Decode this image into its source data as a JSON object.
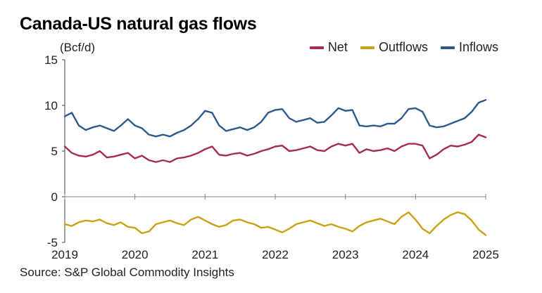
{
  "chart_data": {
    "type": "line",
    "title": "Canada-US natural gas flows",
    "ylabel": "(Bcf/d)",
    "source": "Source: S&P Global Commodity Insights",
    "ylim": [
      -5,
      15
    ],
    "yticks": [
      15,
      10,
      5,
      0,
      -5
    ],
    "xlim": [
      2019,
      2025
    ],
    "xticks": [
      "2019",
      "2020",
      "2021",
      "2022",
      "2023",
      "2024",
      "2025"
    ],
    "grid": false,
    "legend_position": "top-right",
    "series": [
      {
        "name": "Net",
        "color": "#a52a55",
        "x": [
          2019.0,
          2019.1,
          2019.2,
          2019.3,
          2019.4,
          2019.5,
          2019.6,
          2019.7,
          2019.8,
          2019.9,
          2020.0,
          2020.1,
          2020.2,
          2020.3,
          2020.4,
          2020.5,
          2020.6,
          2020.7,
          2020.8,
          2020.9,
          2021.0,
          2021.1,
          2021.2,
          2021.3,
          2021.4,
          2021.5,
          2021.6,
          2021.7,
          2021.8,
          2021.9,
          2022.0,
          2022.1,
          2022.2,
          2022.3,
          2022.4,
          2022.5,
          2022.6,
          2022.7,
          2022.8,
          2022.9,
          2023.0,
          2023.1,
          2023.2,
          2023.3,
          2023.4,
          2023.5,
          2023.6,
          2023.7,
          2023.8,
          2023.9,
          2024.0,
          2024.1,
          2024.2,
          2024.3,
          2024.4,
          2024.5,
          2024.6,
          2024.7,
          2024.8,
          2024.9,
          2025.0
        ],
        "values": [
          5.5,
          4.8,
          4.5,
          4.4,
          4.6,
          5.0,
          4.3,
          4.4,
          4.6,
          4.8,
          4.2,
          4.5,
          4.0,
          3.8,
          4.0,
          3.8,
          4.2,
          4.3,
          4.5,
          4.8,
          5.2,
          5.5,
          4.6,
          4.5,
          4.7,
          4.8,
          4.5,
          4.7,
          5.0,
          5.2,
          5.5,
          5.6,
          5.0,
          5.1,
          5.3,
          5.5,
          5.1,
          5.0,
          5.5,
          5.8,
          5.6,
          5.8,
          4.8,
          5.2,
          5.0,
          5.1,
          5.3,
          5.0,
          5.5,
          5.8,
          5.8,
          5.6,
          4.2,
          4.6,
          5.2,
          5.6,
          5.5,
          5.7,
          6.0,
          6.8,
          6.5
        ]
      },
      {
        "name": "Outflows",
        "color": "#c9a212",
        "x": [
          2019.0,
          2019.1,
          2019.2,
          2019.3,
          2019.4,
          2019.5,
          2019.6,
          2019.7,
          2019.8,
          2019.9,
          2020.0,
          2020.1,
          2020.2,
          2020.3,
          2020.4,
          2020.5,
          2020.6,
          2020.7,
          2020.8,
          2020.9,
          2021.0,
          2021.1,
          2021.2,
          2021.3,
          2021.4,
          2021.5,
          2021.6,
          2021.7,
          2021.8,
          2021.9,
          2022.0,
          2022.1,
          2022.2,
          2022.3,
          2022.4,
          2022.5,
          2022.6,
          2022.7,
          2022.8,
          2022.9,
          2023.0,
          2023.1,
          2023.2,
          2023.3,
          2023.4,
          2023.5,
          2023.6,
          2023.7,
          2023.8,
          2023.9,
          2024.0,
          2024.1,
          2024.2,
          2024.3,
          2024.4,
          2024.5,
          2024.6,
          2024.7,
          2024.8,
          2024.9,
          2025.0
        ],
        "values": [
          -3.0,
          -3.2,
          -2.8,
          -2.6,
          -2.7,
          -2.5,
          -2.9,
          -3.1,
          -2.8,
          -3.3,
          -3.4,
          -4.0,
          -3.8,
          -3.0,
          -2.8,
          -2.6,
          -2.9,
          -3.1,
          -2.5,
          -2.2,
          -2.6,
          -3.0,
          -3.3,
          -3.1,
          -2.6,
          -2.5,
          -2.8,
          -3.0,
          -3.4,
          -3.3,
          -3.6,
          -3.9,
          -3.5,
          -3.0,
          -2.8,
          -2.6,
          -2.9,
          -3.2,
          -3.0,
          -3.3,
          -3.5,
          -3.8,
          -3.2,
          -2.8,
          -2.6,
          -2.4,
          -2.7,
          -3.0,
          -2.2,
          -1.7,
          -2.5,
          -3.5,
          -4.0,
          -3.2,
          -2.5,
          -2.0,
          -1.7,
          -1.9,
          -2.6,
          -3.6,
          -4.2
        ]
      },
      {
        "name": "Inflows",
        "color": "#2d5a8a",
        "x": [
          2019.0,
          2019.1,
          2019.2,
          2019.3,
          2019.4,
          2019.5,
          2019.6,
          2019.7,
          2019.8,
          2019.9,
          2020.0,
          2020.1,
          2020.2,
          2020.3,
          2020.4,
          2020.5,
          2020.6,
          2020.7,
          2020.8,
          2020.9,
          2021.0,
          2021.1,
          2021.2,
          2021.3,
          2021.4,
          2021.5,
          2021.6,
          2021.7,
          2021.8,
          2021.9,
          2022.0,
          2022.1,
          2022.2,
          2022.3,
          2022.4,
          2022.5,
          2022.6,
          2022.7,
          2022.8,
          2022.9,
          2023.0,
          2023.1,
          2023.2,
          2023.3,
          2023.4,
          2023.5,
          2023.6,
          2023.7,
          2023.8,
          2023.9,
          2024.0,
          2024.1,
          2024.2,
          2024.3,
          2024.4,
          2024.5,
          2024.6,
          2024.7,
          2024.8,
          2024.9,
          2025.0
        ],
        "values": [
          8.8,
          9.2,
          7.8,
          7.3,
          7.6,
          7.8,
          7.5,
          7.2,
          7.8,
          8.5,
          7.8,
          7.5,
          6.8,
          6.6,
          6.8,
          6.6,
          7.0,
          7.3,
          7.8,
          8.5,
          9.4,
          9.2,
          7.8,
          7.2,
          7.4,
          7.6,
          7.3,
          7.6,
          8.2,
          9.2,
          9.5,
          9.6,
          8.6,
          8.2,
          8.4,
          8.6,
          8.1,
          8.2,
          8.9,
          9.7,
          9.4,
          9.5,
          7.8,
          7.7,
          7.8,
          7.7,
          8.0,
          8.0,
          8.6,
          9.6,
          9.7,
          9.3,
          7.8,
          7.6,
          7.7,
          8.0,
          8.3,
          8.6,
          9.3,
          10.3,
          10.6
        ]
      }
    ]
  }
}
